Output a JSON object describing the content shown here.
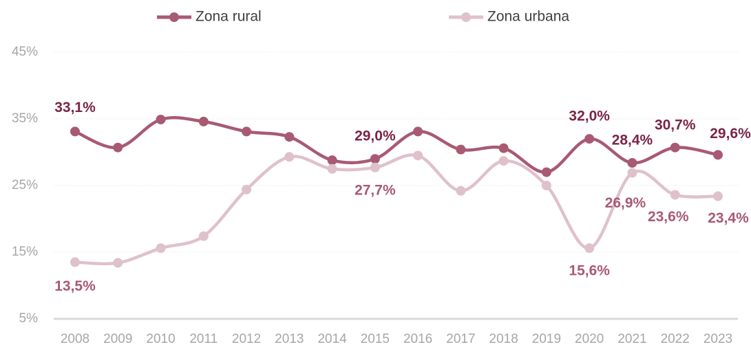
{
  "chart_data": {
    "type": "line",
    "categories": [
      "2008",
      "2009",
      "2010",
      "2011",
      "2012",
      "2013",
      "2014",
      "2015",
      "2016",
      "2017",
      "2018",
      "2019",
      "2020",
      "2021",
      "2022",
      "2023"
    ],
    "series": [
      {
        "name": "Zona rural",
        "color": "#a85a72",
        "label_color": "#7b2445",
        "values": [
          33.1,
          30.7,
          34.9,
          34.6,
          33.1,
          32.3,
          28.8,
          29.0,
          33.1,
          30.4,
          30.6,
          27.0,
          32.0,
          28.4,
          30.7,
          29.6
        ],
        "value_labels": [
          "33,1%",
          null,
          null,
          null,
          null,
          null,
          null,
          "29,0%",
          null,
          null,
          null,
          null,
          "32,0%",
          "28,4%",
          "30,7%",
          "29,6%"
        ]
      },
      {
        "name": "Zona urbana",
        "color": "#dfc1cb",
        "label_color": "#a85a72",
        "values": [
          13.5,
          13.4,
          15.6,
          17.4,
          24.4,
          29.3,
          27.5,
          27.7,
          29.5,
          24.2,
          28.7,
          25.0,
          15.6,
          26.9,
          23.6,
          23.4
        ],
        "value_labels": [
          "13,5%",
          null,
          null,
          null,
          null,
          null,
          null,
          "27,7%",
          null,
          null,
          null,
          null,
          "15,6%",
          "26,9%",
          "23,6%",
          "23,4%"
        ]
      }
    ],
    "ylim": [
      5,
      45
    ],
    "yticks": [
      {
        "value": 5,
        "label": "5%"
      },
      {
        "value": 15,
        "label": "15%"
      },
      {
        "value": 25,
        "label": "25%"
      },
      {
        "value": 35,
        "label": "35%"
      },
      {
        "value": 45,
        "label": "45%"
      }
    ],
    "grid": true,
    "legend": "top"
  }
}
